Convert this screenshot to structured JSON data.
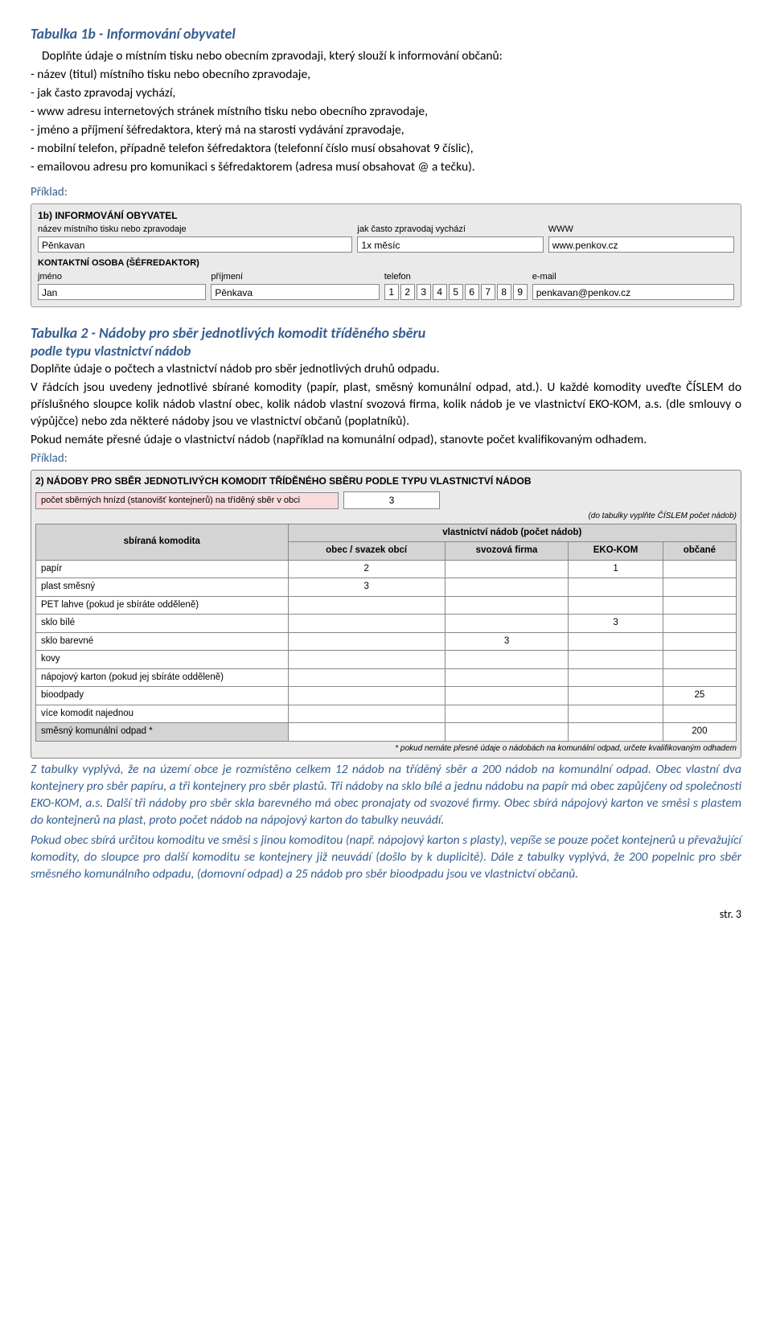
{
  "section1": {
    "title": "Tabulka 1b - Informování obyvatel",
    "intro": "Doplňte údaje o místním tisku nebo obecním zpravodaji, který slouží k informování občanů:",
    "bullets": [
      "- název (titul) místního tisku nebo obecního zpravodaje,",
      "- jak často zpravodaj vychází,",
      "- www adresu internetových stránek místního tisku nebo obecního zpravodaje,",
      "- jméno a příjmení šéfredaktora, který má na starosti vydávání zpravodaje,",
      "- mobilní telefon, případně telefon šéfredaktora (telefonní číslo musí obsahovat 9 číslic),",
      "- emailovou adresu pro komunikaci s šéfredaktorem (adresa musí obsahovat @ a tečku)."
    ],
    "example_label": "Příklad:"
  },
  "form1": {
    "heading": "1b) INFORMOVÁNÍ OBYVATEL",
    "labels": {
      "nazev": "název místního tisku nebo zpravodaje",
      "jak_casto": "jak často zpravodaj vychází",
      "www": "WWW",
      "kontakt": "KONTAKTNÍ OSOBA (ŠÉFREDAKTOR)",
      "jmeno": "jméno",
      "prijmeni": "příjmení",
      "telefon": "telefon",
      "email": "e-mail"
    },
    "values": {
      "nazev": "Pěnkavan",
      "jak_casto": "1x měsíc",
      "www": "www.penkov.cz",
      "jmeno": "Jan",
      "prijmeni": "Pěnkava",
      "telefon": [
        "1",
        "2",
        "3",
        "4",
        "5",
        "6",
        "7",
        "8",
        "9"
      ],
      "email": "penkavan@penkov.cz"
    }
  },
  "section2": {
    "title": "Tabulka 2 - Nádoby pro sběr jednotlivých komodit tříděného sběru",
    "subtitle": "podle typu vlastnictví nádob",
    "paragraphs": [
      "Doplňte údaje o počtech a vlastnictví nádob pro sběr jednotlivých druhů odpadu.",
      "V řádcích jsou uvedeny jednotlivé sbírané komodity (papír, plast, směsný komunální odpad, atd.). U každé komodity uveďte ČÍSLEM do příslušného sloupce kolik nádob vlastní obec, kolik nádob vlastní svozová firma, kolik nádob je ve vlastnictví EKO-KOM, a.s. (dle smlouvy o výpůjčce) nebo zda některé nádoby jsou ve vlastnictví občanů (poplatníků).",
      "Pokud nemáte přesné údaje o vlastnictví nádob (například na komunální odpad), stanovte počet kvalifikovaným odhadem."
    ],
    "example_label": "Příklad:"
  },
  "table2": {
    "title": "2) NÁDOBY PRO SBĚR JEDNOTLIVÝCH KOMODIT TŘÍDĚNÉHO SBĚRU PODLE TYPU VLASTNICTVÍ NÁDOB",
    "top_label": "počet sběrných hnízd (stanovišť kontejnerů) na tříděný sběr v obci",
    "top_value": "3",
    "note": "(do tabulky vyplňte ČÍSLEM počet nádob)",
    "group_header": "vlastnictví nádob (počet nádob)",
    "columns": [
      "sbíraná komodita",
      "obec / svazek obcí",
      "svozová firma",
      "EKO-KOM",
      "občané"
    ],
    "rows": [
      {
        "label": "papír",
        "vals": [
          "2",
          "",
          "1",
          ""
        ]
      },
      {
        "label": "plast směsný",
        "vals": [
          "3",
          "",
          "",
          ""
        ]
      },
      {
        "label": "PET lahve (pokud je sbíráte odděleně)",
        "vals": [
          "",
          "",
          "",
          ""
        ]
      },
      {
        "label": "sklo bílé",
        "vals": [
          "",
          "",
          "3",
          ""
        ]
      },
      {
        "label": "sklo barevné",
        "vals": [
          "",
          "3",
          "",
          ""
        ]
      },
      {
        "label": "kovy",
        "vals": [
          "",
          "",
          "",
          ""
        ]
      },
      {
        "label": "nápojový karton (pokud jej sbíráte odděleně)",
        "vals": [
          "",
          "",
          "",
          ""
        ]
      },
      {
        "label": "bioodpady",
        "vals": [
          "",
          "",
          "",
          "25"
        ]
      },
      {
        "label": "více komodit najednou",
        "vals": [
          "",
          "",
          "",
          ""
        ]
      },
      {
        "label": "směsný komunální odpad *",
        "shaded": true,
        "vals": [
          "",
          "",
          "",
          "200"
        ]
      }
    ],
    "footnote": "* pokud nemáte přesné údaje o nádobách na komunální odpad, určete kvalifikovaným odhadem"
  },
  "italic_block": {
    "p1": "Z tabulky vyplývá, že na území obce je rozmístěno celkem 12 nádob na tříděný sběr a 200 nádob na komunální odpad. Obec vlastní dva kontejnery pro sběr papíru, a tři kontejnery pro sběr plastů. Tři nádoby na sklo bílé a jednu nádobu na papír má obec zapůjčeny od společnosti EKO-KOM, a.s. Další tři nádoby pro sběr skla barevného má obec pronajaty od svozové firmy. Obec sbírá nápojový karton ve směsi s plastem do kontejnerů na plast, proto počet nádob na nápojový karton do tabulky neuvádí.",
    "p2": "Pokud obec sbírá určitou komoditu ve směsi s jinou komoditou (např. nápojový karton s plasty), vepíše se pouze počet kontejnerů u převažující komodity, do sloupce pro další komoditu se kontejnery již neuvádí (došlo by k duplicitě). Dále z tabulky vyplývá, že 200 popelnic pro sběr směsného komunálního odpadu, (domovní odpad) a 25 nádob pro sběr bioodpadu jsou ve vlastnictví občanů."
  },
  "page_number": "str. 3"
}
